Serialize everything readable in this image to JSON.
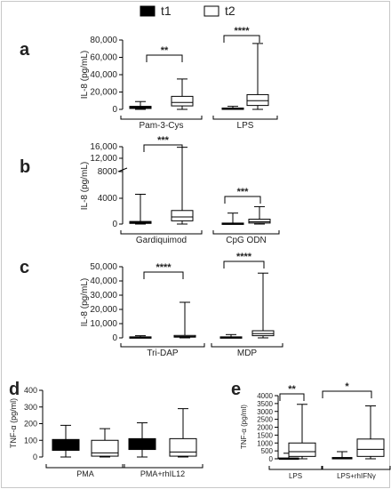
{
  "legend": [
    {
      "label": "t1",
      "fill": "#000000"
    },
    {
      "label": "t2",
      "fill": "#ffffff"
    }
  ],
  "chart_data": [
    {
      "panel": "a",
      "type": "box",
      "ylabel": "IL-8 (pg/mL)",
      "yticks": [
        "0",
        "20,000",
        "40,000",
        "60,000",
        "80,000"
      ],
      "ylim": [
        0,
        80000
      ],
      "groups": [
        {
          "label": "Pam-3-Cys",
          "significance": "**",
          "boxes": [
            {
              "series": "t1",
              "min": 0,
              "q1": 1000,
              "median": 2000,
              "q3": 3500,
              "max": 9000
            },
            {
              "series": "t2",
              "min": 0,
              "q1": 4000,
              "median": 8000,
              "q3": 15000,
              "max": 35000
            }
          ]
        },
        {
          "label": "LPS",
          "significance": "****",
          "boxes": [
            {
              "series": "t1",
              "min": 0,
              "q1": 500,
              "median": 1000,
              "q3": 1500,
              "max": 3500
            },
            {
              "series": "t2",
              "min": 0,
              "q1": 4500,
              "median": 10000,
              "q3": 17000,
              "max": 76000
            }
          ]
        }
      ]
    },
    {
      "panel": "b",
      "type": "box",
      "ylabel": "IL-8 (pg/mL)",
      "yticks": [
        "0",
        "4000",
        "8000",
        "12,000",
        "16,000"
      ],
      "ylim": [
        0,
        16000
      ],
      "axis_break": 8000,
      "groups": [
        {
          "label": "Gardiquimod",
          "significance": "***",
          "boxes": [
            {
              "series": "t1",
              "min": 0,
              "q1": 100,
              "median": 250,
              "q3": 400,
              "max": 4600
            },
            {
              "series": "t2",
              "min": 0,
              "q1": 500,
              "median": 1100,
              "q3": 2100,
              "max": 15800
            }
          ]
        },
        {
          "label": "CpG ODN",
          "significance": "***",
          "boxes": [
            {
              "series": "t1",
              "min": 0,
              "q1": 50,
              "median": 100,
              "q3": 150,
              "max": 1700
            },
            {
              "series": "t2",
              "min": 0,
              "q1": 150,
              "median": 350,
              "q3": 750,
              "max": 2700
            }
          ]
        }
      ]
    },
    {
      "panel": "c",
      "type": "box",
      "ylabel": "IL-8 (pg/mL)",
      "yticks": [
        "0",
        "10,000",
        "20,000",
        "30,000",
        "40,000",
        "50,000"
      ],
      "ylim": [
        0,
        50000
      ],
      "groups": [
        {
          "label": "Tri-DAP",
          "significance": "****",
          "boxes": [
            {
              "series": "t1",
              "min": 0,
              "q1": 200,
              "median": 400,
              "q3": 700,
              "max": 1500
            },
            {
              "series": "t2",
              "min": 0,
              "q1": 500,
              "median": 1000,
              "q3": 1700,
              "max": 25000
            }
          ]
        },
        {
          "label": "MDP",
          "significance": "****",
          "boxes": [
            {
              "series": "t1",
              "min": 0,
              "q1": 200,
              "median": 400,
              "q3": 700,
              "max": 2300
            },
            {
              "series": "t2",
              "min": 0,
              "q1": 1500,
              "median": 3000,
              "q3": 5000,
              "max": 45500
            }
          ]
        }
      ]
    },
    {
      "panel": "d",
      "type": "box",
      "ylabel": "TNF-α (pg/ml)",
      "yticks": [
        "0",
        "100",
        "200",
        "300",
        "400"
      ],
      "ylim": [
        0,
        400
      ],
      "groups": [
        {
          "label": "PMA",
          "significance": "",
          "boxes": [
            {
              "series": "t1",
              "min": 0,
              "q1": 40,
              "median": 80,
              "q3": 105,
              "max": 190
            },
            {
              "series": "t2",
              "min": 0,
              "q1": 5,
              "median": 25,
              "q3": 100,
              "max": 170
            }
          ]
        },
        {
          "label": "PMA+rhIL12",
          "significance": "",
          "boxes": [
            {
              "series": "t1",
              "min": 0,
              "q1": 45,
              "median": 80,
              "q3": 110,
              "max": 205
            },
            {
              "series": "t2",
              "min": 0,
              "q1": 5,
              "median": 30,
              "q3": 110,
              "max": 290
            }
          ]
        }
      ]
    },
    {
      "panel": "e",
      "type": "box",
      "ylabel": "TNF-α (pg/ml)",
      "yticks": [
        "0",
        "500",
        "1000",
        "1500",
        "2000",
        "2500",
        "3000",
        "3500",
        "4000"
      ],
      "ylim": [
        0,
        4000
      ],
      "groups": [
        {
          "label": "LPS",
          "significance": "**",
          "boxes": [
            {
              "series": "t1",
              "min": 0,
              "q1": 0,
              "median": 10,
              "q3": 50,
              "max": 350
            },
            {
              "series": "t2",
              "min": 0,
              "q1": 150,
              "median": 450,
              "q3": 1000,
              "max": 3450
            }
          ]
        },
        {
          "label": "LPS+rhIFNγ",
          "significance": "*",
          "boxes": [
            {
              "series": "t1",
              "min": 0,
              "q1": 0,
              "median": 20,
              "q3": 80,
              "max": 450
            },
            {
              "series": "t2",
              "min": 0,
              "q1": 150,
              "median": 600,
              "q3": 1250,
              "max": 3350
            }
          ]
        }
      ]
    }
  ]
}
